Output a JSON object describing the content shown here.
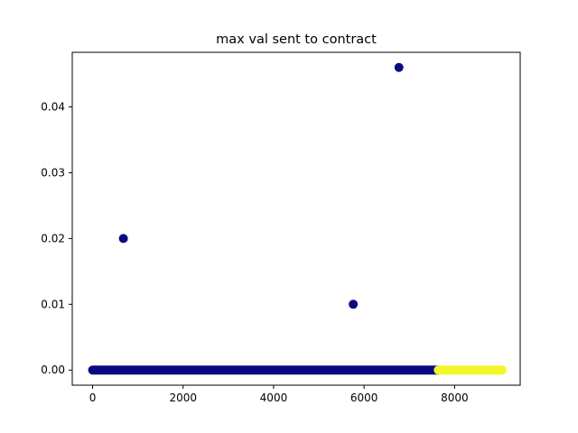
{
  "chart_data": {
    "type": "scatter",
    "title": "max val sent to contract",
    "xlabel": "",
    "ylabel": "",
    "xlim": [
      -450,
      9450
    ],
    "ylim": [
      -0.0023,
      0.0483
    ],
    "x_ticks": [
      0,
      2000,
      4000,
      6000,
      8000
    ],
    "x_tick_labels": [
      "0",
      "2000",
      "4000",
      "6000",
      "8000"
    ],
    "y_ticks": [
      0.0,
      0.01,
      0.02,
      0.03,
      0.04
    ],
    "y_tick_labels": [
      "0.00",
      "0.01",
      "0.02",
      "0.03",
      "0.04"
    ],
    "grid": false,
    "series": [
      {
        "color": "#0a0a80",
        "points": [
          [
            680,
            0.02
          ],
          [
            5760,
            0.01
          ],
          [
            6770,
            0.046
          ]
        ],
        "zero_band": {
          "x_start": 0,
          "x_end": 7640,
          "y": 0.0
        }
      },
      {
        "color": "#f2f52a",
        "points": [],
        "zero_band": {
          "x_start": 7640,
          "x_end": 9050,
          "y": 0.0
        }
      }
    ]
  }
}
